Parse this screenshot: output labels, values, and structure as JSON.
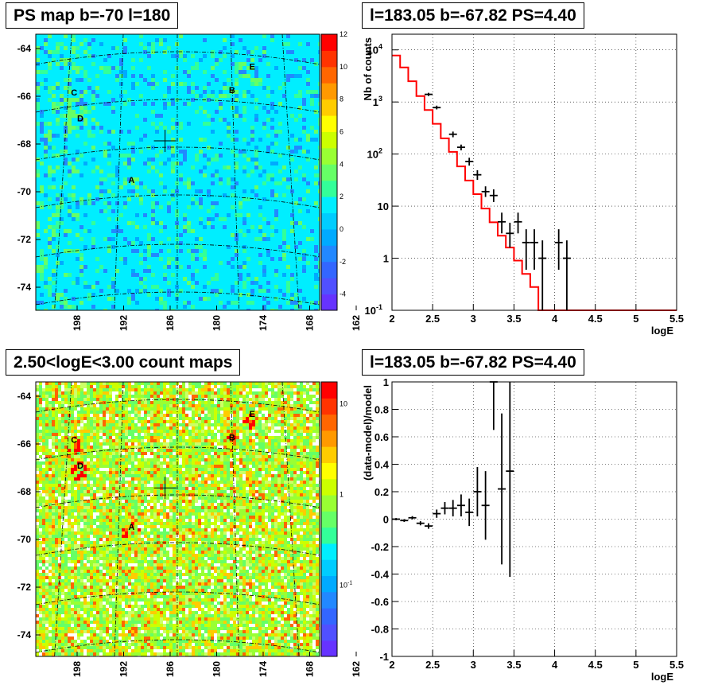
{
  "panels": {
    "top_left_title": "PS map b=-70 l=180",
    "top_right_title": "l=183.05 b=-67.82 PS=4.40",
    "bottom_left_title": "2.50<logE<3.00 count maps",
    "bottom_right_title": "l=183.05 b=-67.82 PS=4.40"
  },
  "chart_data": [
    {
      "type": "heatmap",
      "title": "PS map b=-70 l=180",
      "y_ticks": [
        "-64",
        "-66",
        "-68",
        "-70",
        "-72",
        "-74"
      ],
      "x_ticks": [
        "198",
        "192",
        "186",
        "180",
        "174",
        "168",
        "162"
      ],
      "colorbar_ticks": [
        "12",
        "10",
        "8",
        "6",
        "4",
        "2",
        "0",
        "-2",
        "-4"
      ],
      "colorbar_range": [
        -5,
        12
      ],
      "sources": [
        {
          "label": "A",
          "lon": 189.0,
          "lat": -69.6
        },
        {
          "label": "B",
          "lon": 172.7,
          "lat": -65.8
        },
        {
          "label": "C",
          "lon": 198.3,
          "lat": -65.9
        },
        {
          "label": "D",
          "lon": 197.3,
          "lat": -67.0
        },
        {
          "label": "E",
          "lon": 169.4,
          "lat": -64.8
        }
      ],
      "marker": {
        "lon": 183.05,
        "lat": -67.82
      }
    },
    {
      "type": "line",
      "title": "l=183.05 b=-67.82 PS=4.40",
      "xlabel": "logE",
      "ylabel": "Nb of counts",
      "xlim": [
        2,
        5.5
      ],
      "ylim": [
        0.1,
        20000
      ],
      "log_y": true,
      "grid": true,
      "x_ticks": [
        "2",
        "2.5",
        "3",
        "3.5",
        "4",
        "4.5",
        "5",
        "5.5"
      ],
      "y_ticks": [
        "10",
        "1",
        "10",
        "10",
        "1",
        "10"
      ],
      "y_tick_exponents": [
        "4",
        "3",
        "2",
        "",
        "",
        "-1"
      ],
      "y_tick_values": [
        10000,
        1000,
        100,
        10,
        1,
        0.1
      ],
      "series": [
        {
          "name": "model",
          "color": "#ff0000",
          "bin_edges": [
            2.0,
            2.1,
            2.2,
            2.3,
            2.4,
            2.5,
            2.6,
            2.7,
            2.8,
            2.9,
            3.0,
            3.1,
            3.2,
            3.3,
            3.4,
            3.5,
            3.6,
            3.7,
            3.8,
            3.9,
            4.0,
            4.1,
            4.2,
            4.3,
            4.4,
            4.5,
            4.6,
            4.7,
            4.8,
            4.9,
            5.0,
            5.1,
            5.2,
            5.3,
            5.4,
            5.5
          ],
          "values": [
            7800,
            4600,
            2500,
            1300,
            700,
            380,
            200,
            110,
            58,
            31,
            17,
            9,
            4.9,
            2.7,
            1.6,
            0.9,
            0.5,
            0.28,
            0.1,
            0.1,
            0.1,
            0.1,
            0.1,
            0.1,
            0.1,
            0.1,
            0.1,
            0.1,
            0.1,
            0.1,
            0.1,
            0.1,
            0.1,
            0.1,
            0.1
          ]
        },
        {
          "name": "data",
          "color": "#000000",
          "points": [
            {
              "x": 2.45,
              "y": 1400,
              "lo": 1300,
              "hi": 1500
            },
            {
              "x": 2.55,
              "y": 780,
              "lo": 720,
              "hi": 850
            },
            {
              "x": 2.75,
              "y": 240,
              "lo": 210,
              "hi": 270
            },
            {
              "x": 2.85,
              "y": 135,
              "lo": 118,
              "hi": 152
            },
            {
              "x": 2.95,
              "y": 72,
              "lo": 60,
              "hi": 85
            },
            {
              "x": 3.05,
              "y": 40,
              "lo": 32,
              "hi": 49
            },
            {
              "x": 3.15,
              "y": 19,
              "lo": 15,
              "hi": 24
            },
            {
              "x": 3.25,
              "y": 16,
              "lo": 12,
              "hi": 21
            },
            {
              "x": 3.35,
              "y": 5,
              "lo": 3,
              "hi": 7.5
            },
            {
              "x": 3.45,
              "y": 3,
              "lo": 1.6,
              "hi": 4.8
            },
            {
              "x": 3.55,
              "y": 5,
              "lo": 3,
              "hi": 7.5
            },
            {
              "x": 3.65,
              "y": 2,
              "lo": 0.6,
              "hi": 3.6
            },
            {
              "x": 3.75,
              "y": 2,
              "lo": 0.6,
              "hi": 3.6
            },
            {
              "x": 3.85,
              "y": 1,
              "lo": 0.1,
              "hi": 2.2
            },
            {
              "x": 4.05,
              "y": 2,
              "lo": 0.6,
              "hi": 3.6
            },
            {
              "x": 4.15,
              "y": 1,
              "lo": 0.1,
              "hi": 2.2
            }
          ]
        }
      ]
    },
    {
      "type": "heatmap",
      "title": "2.50<logE<3.00 count maps",
      "y_ticks": [
        "-64",
        "-66",
        "-68",
        "-70",
        "-72",
        "-74"
      ],
      "x_ticks": [
        "198",
        "192",
        "186",
        "180",
        "174",
        "168",
        "162"
      ],
      "colorbar_ticks": [
        "10",
        "1",
        "10"
      ],
      "colorbar_tick_exponents": [
        "",
        "",
        "-1"
      ],
      "log_scale": true,
      "sources": [
        {
          "label": "A",
          "lon": 189.0,
          "lat": -69.6
        },
        {
          "label": "B",
          "lon": 172.7,
          "lat": -65.8
        },
        {
          "label": "C",
          "lon": 198.3,
          "lat": -65.9
        },
        {
          "label": "D",
          "lon": 197.3,
          "lat": -67.0
        },
        {
          "label": "E",
          "lon": 169.4,
          "lat": -64.8
        }
      ],
      "marker": {
        "lon": 183.05,
        "lat": -67.82
      }
    },
    {
      "type": "scatter",
      "title": "l=183.05 b=-67.82 PS=4.40",
      "xlabel": "logE",
      "ylabel": "(data-model)/model",
      "xlim": [
        2,
        5.5
      ],
      "ylim": [
        -1,
        1
      ],
      "grid": true,
      "x_ticks": [
        "2",
        "2.5",
        "3",
        "3.5",
        "4",
        "4.5",
        "5",
        "5.5"
      ],
      "y_ticks": [
        "1",
        "0.8",
        "0.6",
        "0.4",
        "0.2",
        "0",
        "-0.2",
        "-0.4",
        "-0.6",
        "-0.8",
        "-1"
      ],
      "points": [
        {
          "x": 2.05,
          "y": 0.0,
          "err": 0.008
        },
        {
          "x": 2.15,
          "y": -0.01,
          "err": 0.01
        },
        {
          "x": 2.25,
          "y": 0.01,
          "err": 0.012
        },
        {
          "x": 2.35,
          "y": -0.03,
          "err": 0.015
        },
        {
          "x": 2.45,
          "y": -0.05,
          "err": 0.02
        },
        {
          "x": 2.55,
          "y": 0.04,
          "err": 0.03
        },
        {
          "x": 2.65,
          "y": 0.08,
          "err": 0.045
        },
        {
          "x": 2.75,
          "y": 0.08,
          "err": 0.06
        },
        {
          "x": 2.85,
          "y": 0.1,
          "err": 0.08
        },
        {
          "x": 2.95,
          "y": 0.05,
          "err": 0.1
        },
        {
          "x": 3.05,
          "y": 0.2,
          "err": 0.18
        },
        {
          "x": 3.15,
          "y": 0.1,
          "err": 0.25
        },
        {
          "x": 3.25,
          "y": 1.0,
          "err": 0.35
        },
        {
          "x": 3.35,
          "y": 0.22,
          "err": 0.55
        },
        {
          "x": 3.45,
          "y": 0.35,
          "err": 0.77
        }
      ]
    }
  ]
}
